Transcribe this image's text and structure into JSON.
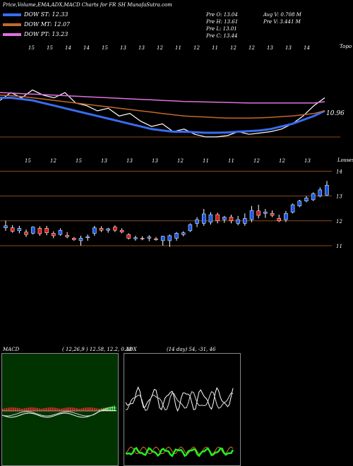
{
  "header": {
    "title": "Price,Volume,EMA,ADX,MACD Charts for FR",
    "site": "SH MunafaSutra.com"
  },
  "legend": [
    {
      "label": "DOW ST: 12.33",
      "color": "#3a6cf0"
    },
    {
      "label": "DOW MT: 12.07",
      "color": "#c26a2a"
    },
    {
      "label": "DOW PT: 13.23",
      "color": "#e070e0"
    }
  ],
  "quote": {
    "col1": [
      "Pre O: 13.04",
      "Pre H: 13.61",
      "Pre L: 13.01",
      "Pre C: 13.44"
    ],
    "col2": [
      "Avg V: 0.708 M",
      "Pre V: 3.441 M"
    ]
  },
  "chart_data": [
    {
      "type": "line",
      "name": "ema-chart",
      "top_dates": [
        "15",
        "15",
        "14",
        "14",
        "15",
        "13",
        "13",
        "12",
        "11",
        "12",
        "11",
        "12",
        "12",
        "13",
        "13",
        "14"
      ],
      "side_label": "Topo",
      "value_label": "10.96",
      "series": [
        {
          "color": "#ffffff",
          "values": [
            12.2,
            12.5,
            12.3,
            12.6,
            12.4,
            12.3,
            12.5,
            12.1,
            12.0,
            11.8,
            11.9,
            11.6,
            11.7,
            11.4,
            11.2,
            11.3,
            11.0,
            11.1,
            10.9,
            10.8,
            10.8,
            10.85,
            11.0,
            10.9,
            10.95,
            11.0,
            11.1,
            11.3,
            11.6,
            12.0,
            12.3
          ]
        },
        {
          "color": "#3a6cf0",
          "values": [
            12.3,
            12.3,
            12.25,
            12.2,
            12.1,
            12.0,
            11.9,
            11.8,
            11.7,
            11.6,
            11.5,
            11.4,
            11.3,
            11.2,
            11.1,
            11.05,
            11.0,
            11.0,
            10.98,
            10.96,
            10.96,
            10.97,
            11.0,
            11.02,
            11.05,
            11.1,
            11.2,
            11.3,
            11.45,
            11.6,
            11.8
          ]
        },
        {
          "color": "#c26a2a",
          "values": [
            12.4,
            12.38,
            12.35,
            12.3,
            12.25,
            12.2,
            12.15,
            12.1,
            12.05,
            12.0,
            11.95,
            11.9,
            11.85,
            11.8,
            11.75,
            11.7,
            11.65,
            11.6,
            11.58,
            11.56,
            11.54,
            11.52,
            11.52,
            11.52,
            11.53,
            11.55,
            11.58,
            11.6,
            11.65,
            11.7,
            11.8
          ]
        },
        {
          "color": "#e070e0",
          "values": [
            12.5,
            12.48,
            12.46,
            12.44,
            12.42,
            12.4,
            12.38,
            12.36,
            12.34,
            12.32,
            12.3,
            12.28,
            12.26,
            12.24,
            12.22,
            12.2,
            12.18,
            12.16,
            12.15,
            12.14,
            12.13,
            12.12,
            12.11,
            12.1,
            12.1,
            12.1,
            12.1,
            12.1,
            12.1,
            12.1,
            12.15
          ]
        }
      ]
    },
    {
      "type": "candlestick",
      "name": "price-chart",
      "side_label": "Losses",
      "date_labels": [
        "15",
        "12",
        "15",
        "13",
        "13",
        "13",
        "12",
        "11",
        "11",
        "12",
        "12",
        "13"
      ],
      "y_ticks": [
        14,
        13,
        12,
        11
      ],
      "ylim": [
        10.6,
        14.3
      ],
      "candles": [
        {
          "o": 11.72,
          "h": 12.01,
          "l": 11.6,
          "c": 11.8
        },
        {
          "o": 11.72,
          "h": 11.83,
          "l": 11.52,
          "c": 11.58
        },
        {
          "o": 11.6,
          "h": 11.8,
          "l": 11.5,
          "c": 11.7
        },
        {
          "o": 11.55,
          "h": 11.65,
          "l": 11.35,
          "c": 11.45
        },
        {
          "o": 11.5,
          "h": 11.78,
          "l": 11.45,
          "c": 11.75
        },
        {
          "o": 11.7,
          "h": 11.78,
          "l": 11.4,
          "c": 11.48
        },
        {
          "o": 11.7,
          "h": 11.8,
          "l": 11.42,
          "c": 11.52
        },
        {
          "o": 11.5,
          "h": 11.58,
          "l": 11.3,
          "c": 11.4
        },
        {
          "o": 11.45,
          "h": 11.7,
          "l": 11.4,
          "c": 11.62
        },
        {
          "o": 11.42,
          "h": 11.55,
          "l": 11.3,
          "c": 11.36
        },
        {
          "o": 11.3,
          "h": 11.35,
          "l": 11.2,
          "c": 11.24
        },
        {
          "o": 11.2,
          "h": 11.4,
          "l": 11.0,
          "c": 11.3
        },
        {
          "o": 11.32,
          "h": 11.45,
          "l": 11.2,
          "c": 11.36
        },
        {
          "o": 11.5,
          "h": 11.8,
          "l": 11.4,
          "c": 11.72
        },
        {
          "o": 11.7,
          "h": 11.78,
          "l": 11.55,
          "c": 11.62
        },
        {
          "o": 11.62,
          "h": 11.72,
          "l": 11.52,
          "c": 11.68
        },
        {
          "o": 11.75,
          "h": 11.82,
          "l": 11.55,
          "c": 11.62
        },
        {
          "o": 11.62,
          "h": 11.7,
          "l": 11.5,
          "c": 11.55
        },
        {
          "o": 11.45,
          "h": 11.5,
          "l": 11.25,
          "c": 11.3
        },
        {
          "o": 11.28,
          "h": 11.4,
          "l": 11.2,
          "c": 11.32
        },
        {
          "o": 11.3,
          "h": 11.38,
          "l": 11.22,
          "c": 11.28
        },
        {
          "o": 11.3,
          "h": 11.42,
          "l": 11.18,
          "c": 11.35
        },
        {
          "o": 11.28,
          "h": 11.35,
          "l": 11.2,
          "c": 11.24
        },
        {
          "o": 11.2,
          "h": 11.4,
          "l": 11.0,
          "c": 11.38
        },
        {
          "o": 11.2,
          "h": 11.45,
          "l": 10.95,
          "c": 11.4
        },
        {
          "o": 11.3,
          "h": 11.55,
          "l": 11.2,
          "c": 11.5
        },
        {
          "o": 11.45,
          "h": 11.58,
          "l": 11.38,
          "c": 11.52
        },
        {
          "o": 11.6,
          "h": 11.9,
          "l": 11.55,
          "c": 11.85
        },
        {
          "o": 11.9,
          "h": 12.15,
          "l": 11.75,
          "c": 12.05
        },
        {
          "o": 11.9,
          "h": 12.48,
          "l": 11.8,
          "c": 12.28
        },
        {
          "o": 11.95,
          "h": 12.35,
          "l": 11.85,
          "c": 12.25
        },
        {
          "o": 12.25,
          "h": 12.33,
          "l": 11.9,
          "c": 12.0
        },
        {
          "o": 12.05,
          "h": 12.2,
          "l": 11.92,
          "c": 12.15
        },
        {
          "o": 12.15,
          "h": 12.25,
          "l": 11.9,
          "c": 12.0
        },
        {
          "o": 11.9,
          "h": 12.2,
          "l": 11.82,
          "c": 12.05
        },
        {
          "o": 11.9,
          "h": 12.3,
          "l": 11.8,
          "c": 12.1
        },
        {
          "o": 12.05,
          "h": 12.6,
          "l": 11.95,
          "c": 12.42
        },
        {
          "o": 12.4,
          "h": 12.65,
          "l": 12.1,
          "c": 12.22
        },
        {
          "o": 12.3,
          "h": 12.48,
          "l": 12.12,
          "c": 12.36
        },
        {
          "o": 12.3,
          "h": 12.42,
          "l": 12.15,
          "c": 12.22
        },
        {
          "o": 12.1,
          "h": 12.25,
          "l": 11.95,
          "c": 12.0
        },
        {
          "o": 12.05,
          "h": 12.4,
          "l": 11.95,
          "c": 12.3
        },
        {
          "o": 12.35,
          "h": 12.7,
          "l": 12.3,
          "c": 12.65
        },
        {
          "o": 12.6,
          "h": 12.85,
          "l": 12.55,
          "c": 12.8
        },
        {
          "o": 12.8,
          "h": 13.0,
          "l": 12.75,
          "c": 12.92
        },
        {
          "o": 12.85,
          "h": 13.15,
          "l": 12.8,
          "c": 13.1
        },
        {
          "o": 13.0,
          "h": 13.35,
          "l": 12.95,
          "c": 13.25
        },
        {
          "o": 13.04,
          "h": 13.61,
          "l": 13.01,
          "c": 13.44
        }
      ]
    },
    {
      "type": "line",
      "name": "macd-chart",
      "label": "MACD",
      "values_text": "( 12,26,9 ) 12.58,  12.2,  0.38"
    },
    {
      "type": "line",
      "name": "adx-chart",
      "label": "ADX",
      "values_text": "(14  day) 54,  -31,  46"
    }
  ],
  "colors": {
    "up": "#1a57e6",
    "down": "#e01818",
    "macd_bg": "#003300",
    "grid": "#8a4a1a"
  }
}
